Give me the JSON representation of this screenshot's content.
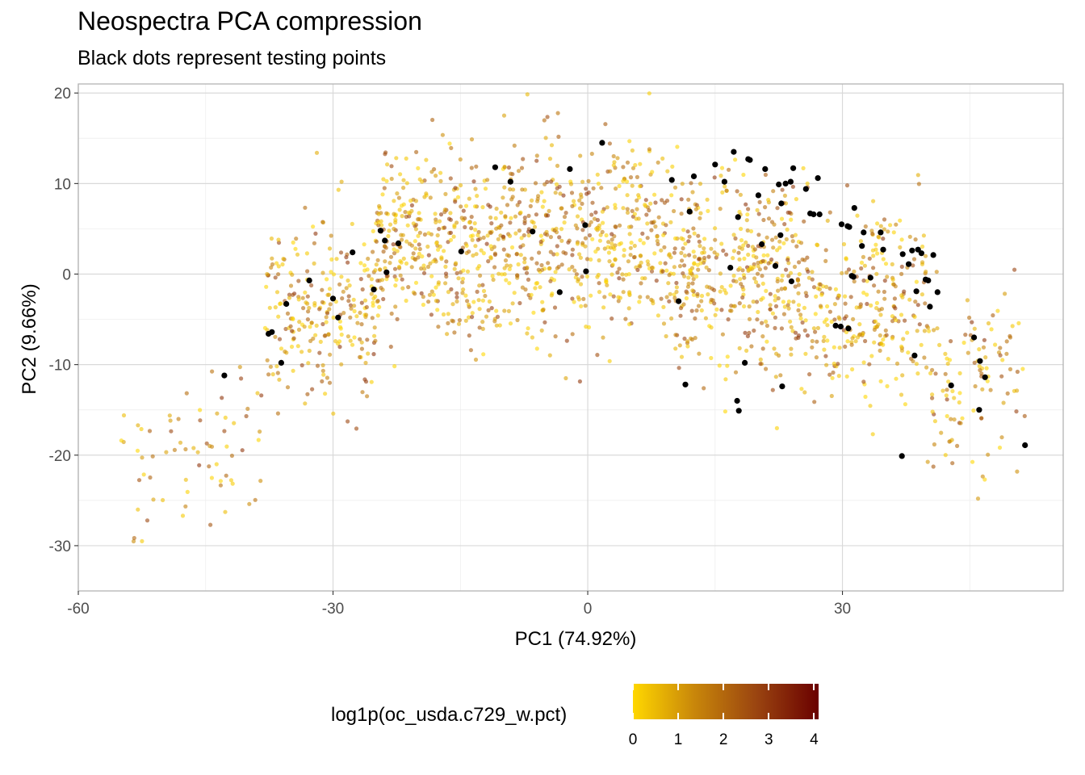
{
  "title": "Neospectra PCA compression",
  "subtitle": "Black dots represent testing points",
  "legend": {
    "title": "log1p(oc_usda.c729_w.pct)",
    "ticks": [
      "0",
      "1",
      "2",
      "3",
      "4"
    ],
    "range": [
      0,
      4.1
    ],
    "colors": [
      "#ffd700",
      "#c8860a",
      "#9a4410",
      "#6a0000"
    ]
  },
  "chart_data": {
    "type": "scatter",
    "title": "Neospectra PCA compression",
    "subtitle": "Black dots represent testing points",
    "xlabel": "PC1 (74.92%)",
    "ylabel": "PC2 (9.66%)",
    "xlim": [
      -60,
      56
    ],
    "ylim": [
      -35,
      21
    ],
    "x_ticks": [
      -60,
      -30,
      0,
      30
    ],
    "x_tick_labels": [
      "-60",
      "-30",
      "0",
      "30"
    ],
    "y_ticks": [
      -30,
      -20,
      -10,
      0,
      10,
      20
    ],
    "y_tick_labels": [
      "-30",
      "-20",
      "-10",
      "0",
      "10",
      "20"
    ],
    "grid": true,
    "legend_position": "bottom",
    "testing_color": "#000000",
    "testing_points": [
      [
        -42.8,
        -11.2
      ],
      [
        -37.6,
        -6.6
      ],
      [
        -37.2,
        -6.4
      ],
      [
        -36.1,
        -9.8
      ],
      [
        -35.5,
        -3.3
      ],
      [
        -32.8,
        -0.7
      ],
      [
        -30,
        -2.7
      ],
      [
        -29.4,
        -4.8
      ],
      [
        -27.7,
        2.4
      ],
      [
        -25.2,
        -1.7
      ],
      [
        -24.4,
        4.8
      ],
      [
        -23.9,
        3.7
      ],
      [
        -23.7,
        0.2
      ],
      [
        -22.3,
        3.4
      ],
      [
        -14.9,
        2.5
      ],
      [
        -10.9,
        11.8
      ],
      [
        -9.1,
        10.2
      ],
      [
        -6.5,
        4.7
      ],
      [
        -3.3,
        -2
      ],
      [
        -2.1,
        11.6
      ],
      [
        -0.3,
        5.4
      ],
      [
        -0.2,
        0.3
      ],
      [
        1.7,
        14.5
      ],
      [
        9.9,
        10.4
      ],
      [
        10.7,
        -3
      ],
      [
        11.5,
        -12.2
      ],
      [
        12.0,
        6.9
      ],
      [
        12.5,
        10.8
      ],
      [
        15.0,
        12.1
      ],
      [
        16.1,
        10.2
      ],
      [
        17.2,
        13.5
      ],
      [
        17.7,
        6.3
      ],
      [
        16.8,
        0.7
      ],
      [
        18.9,
        12.7
      ],
      [
        19.1,
        12.6
      ],
      [
        20.1,
        8.7
      ],
      [
        20.5,
        3.3
      ],
      [
        20.9,
        11.6
      ],
      [
        22.9,
        -12.4
      ],
      [
        17.6,
        -14
      ],
      [
        17.8,
        -15.1
      ],
      [
        18.5,
        -9.8
      ],
      [
        22.5,
        9.9
      ],
      [
        22.7,
        4.3
      ],
      [
        22.8,
        7.8
      ],
      [
        23.3,
        10.0
      ],
      [
        23.9,
        10.2
      ],
      [
        22.1,
        0.9
      ],
      [
        24.0,
        -0.8
      ],
      [
        24.2,
        11.7
      ],
      [
        25.7,
        9.4
      ],
      [
        26.2,
        6.7
      ],
      [
        26.6,
        6.6
      ],
      [
        27.1,
        10.6
      ],
      [
        29.9,
        5.5
      ],
      [
        30.6,
        5.3
      ],
      [
        30.8,
        5.2
      ],
      [
        31.4,
        7.3
      ],
      [
        32.5,
        4.6
      ],
      [
        34.5,
        4.6
      ],
      [
        34.8,
        2.7
      ],
      [
        30.7,
        -6.0
      ],
      [
        29.2,
        -5.7
      ],
      [
        31.1,
        -0.2
      ],
      [
        33.3,
        -0.4
      ],
      [
        37.0,
        -20.1
      ],
      [
        37.8,
        1.1
      ],
      [
        38.2,
        2.6
      ],
      [
        38.5,
        -9.0
      ],
      [
        38.7,
        -1.9
      ],
      [
        38.9,
        2.7
      ],
      [
        39.3,
        2.3
      ],
      [
        39.8,
        -0.6
      ],
      [
        40.3,
        -3.6
      ],
      [
        40.7,
        2.1
      ],
      [
        41.2,
        -2.0
      ],
      [
        42.8,
        -12.3
      ],
      [
        45.5,
        -7.0
      ],
      [
        46.1,
        -15.0
      ],
      [
        46.2,
        -9.6
      ],
      [
        46.8,
        -11.4
      ],
      [
        51.5,
        -18.9
      ],
      [
        31.3,
        -0.3
      ],
      [
        27.3,
        6.6
      ],
      [
        32.3,
        3.1
      ],
      [
        37.1,
        2.2
      ],
      [
        40.1,
        -0.7
      ],
      [
        29.8,
        -5.8
      ]
    ],
    "training_density": [
      {
        "x": [
          -55,
          -38
        ],
        "y_center": -20,
        "count": 70
      },
      {
        "x": [
          -38,
          -25
        ],
        "y_center": -4,
        "count": 240
      },
      {
        "x": [
          -25,
          -10
        ],
        "y_center": 3,
        "count": 380
      },
      {
        "x": [
          -10,
          10
        ],
        "y_center": 4,
        "count": 480
      },
      {
        "x": [
          10,
          25
        ],
        "y_center": 0,
        "count": 380
      },
      {
        "x": [
          25,
          40
        ],
        "y_center": -3,
        "count": 280
      },
      {
        "x": [
          40,
          52
        ],
        "y_center": -12,
        "count": 110
      }
    ],
    "training_point_opacity": 0.6
  }
}
